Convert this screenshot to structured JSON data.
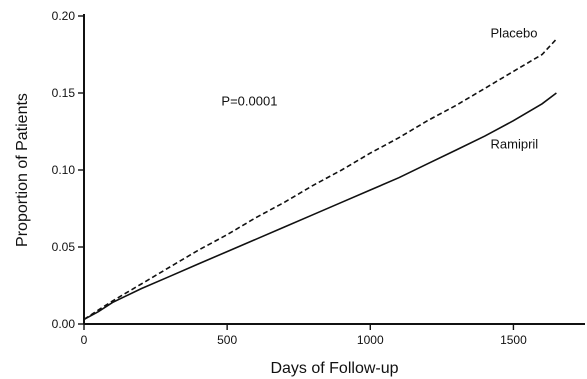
{
  "chart_data": {
    "type": "line",
    "title": "",
    "xlabel": "Days of Follow-up",
    "ylabel": "Proportion of Patients",
    "xlim": [
      0,
      1750
    ],
    "ylim": [
      0,
      0.2
    ],
    "xticks": [
      0,
      500,
      1000,
      1500
    ],
    "yticks": [
      0.0,
      0.05,
      0.1,
      0.15,
      0.2
    ],
    "xtick_labels": [
      "0",
      "500",
      "1000",
      "1500"
    ],
    "ytick_labels": [
      "0.00",
      "0.05",
      "0.10",
      "0.15",
      "0.20"
    ],
    "grid": false,
    "legend": "none",
    "series": [
      {
        "name": "Placebo",
        "style": "dashed",
        "color": "#111111",
        "x": [
          0,
          50,
          100,
          200,
          300,
          400,
          500,
          600,
          700,
          800,
          900,
          1000,
          1100,
          1200,
          1300,
          1400,
          1500,
          1600,
          1650
        ],
        "y": [
          0.003,
          0.009,
          0.015,
          0.026,
          0.037,
          0.048,
          0.058,
          0.069,
          0.079,
          0.09,
          0.1,
          0.111,
          0.121,
          0.132,
          0.142,
          0.153,
          0.164,
          0.175,
          0.185
        ]
      },
      {
        "name": "Ramipril",
        "style": "solid",
        "color": "#111111",
        "x": [
          0,
          50,
          100,
          200,
          300,
          400,
          500,
          600,
          700,
          800,
          900,
          1000,
          1100,
          1200,
          1300,
          1400,
          1500,
          1600,
          1650
        ],
        "y": [
          0.003,
          0.008,
          0.014,
          0.023,
          0.031,
          0.039,
          0.047,
          0.055,
          0.063,
          0.071,
          0.079,
          0.087,
          0.095,
          0.104,
          0.113,
          0.122,
          0.132,
          0.143,
          0.15
        ]
      }
    ],
    "annotations": [
      {
        "text": "P=0.0001",
        "x": 480,
        "y": 0.142
      }
    ],
    "series_labels": [
      {
        "text": "Placebo",
        "x": 1420,
        "y": 0.186
      },
      {
        "text": "Ramipril",
        "x": 1420,
        "y": 0.114
      }
    ]
  }
}
